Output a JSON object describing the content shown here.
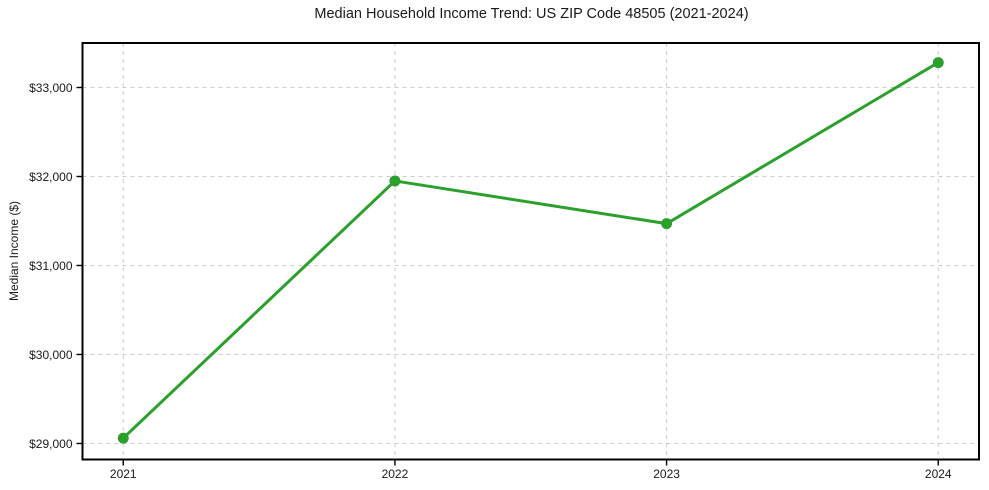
{
  "chart_data": {
    "type": "line",
    "title": "Median Household Income Trend: US ZIP Code 48505 (2021-2024)",
    "xlabel": "",
    "ylabel": "Median Income ($)",
    "x": [
      2021,
      2022,
      2023,
      2024
    ],
    "x_tick_labels": [
      "2021",
      "2022",
      "2023",
      "2024"
    ],
    "values": [
      29060,
      31950,
      31470,
      33280
    ],
    "y_ticks": [
      29000,
      30000,
      31000,
      32000,
      33000
    ],
    "y_tick_labels": [
      "$29,000",
      "$30,000",
      "$31,000",
      "$32,000",
      "$33,000"
    ],
    "xlim": [
      2020.85,
      2024.15
    ],
    "ylim": [
      28820,
      33500
    ],
    "grid": true,
    "grid_style": "dashed",
    "legend": "none",
    "line_color": "#2ca02c",
    "marker": "circle",
    "marker_color": "#2ca02c",
    "grid_color": "#cccccc",
    "axis_color": "#000000",
    "background_color": "#ffffff"
  }
}
